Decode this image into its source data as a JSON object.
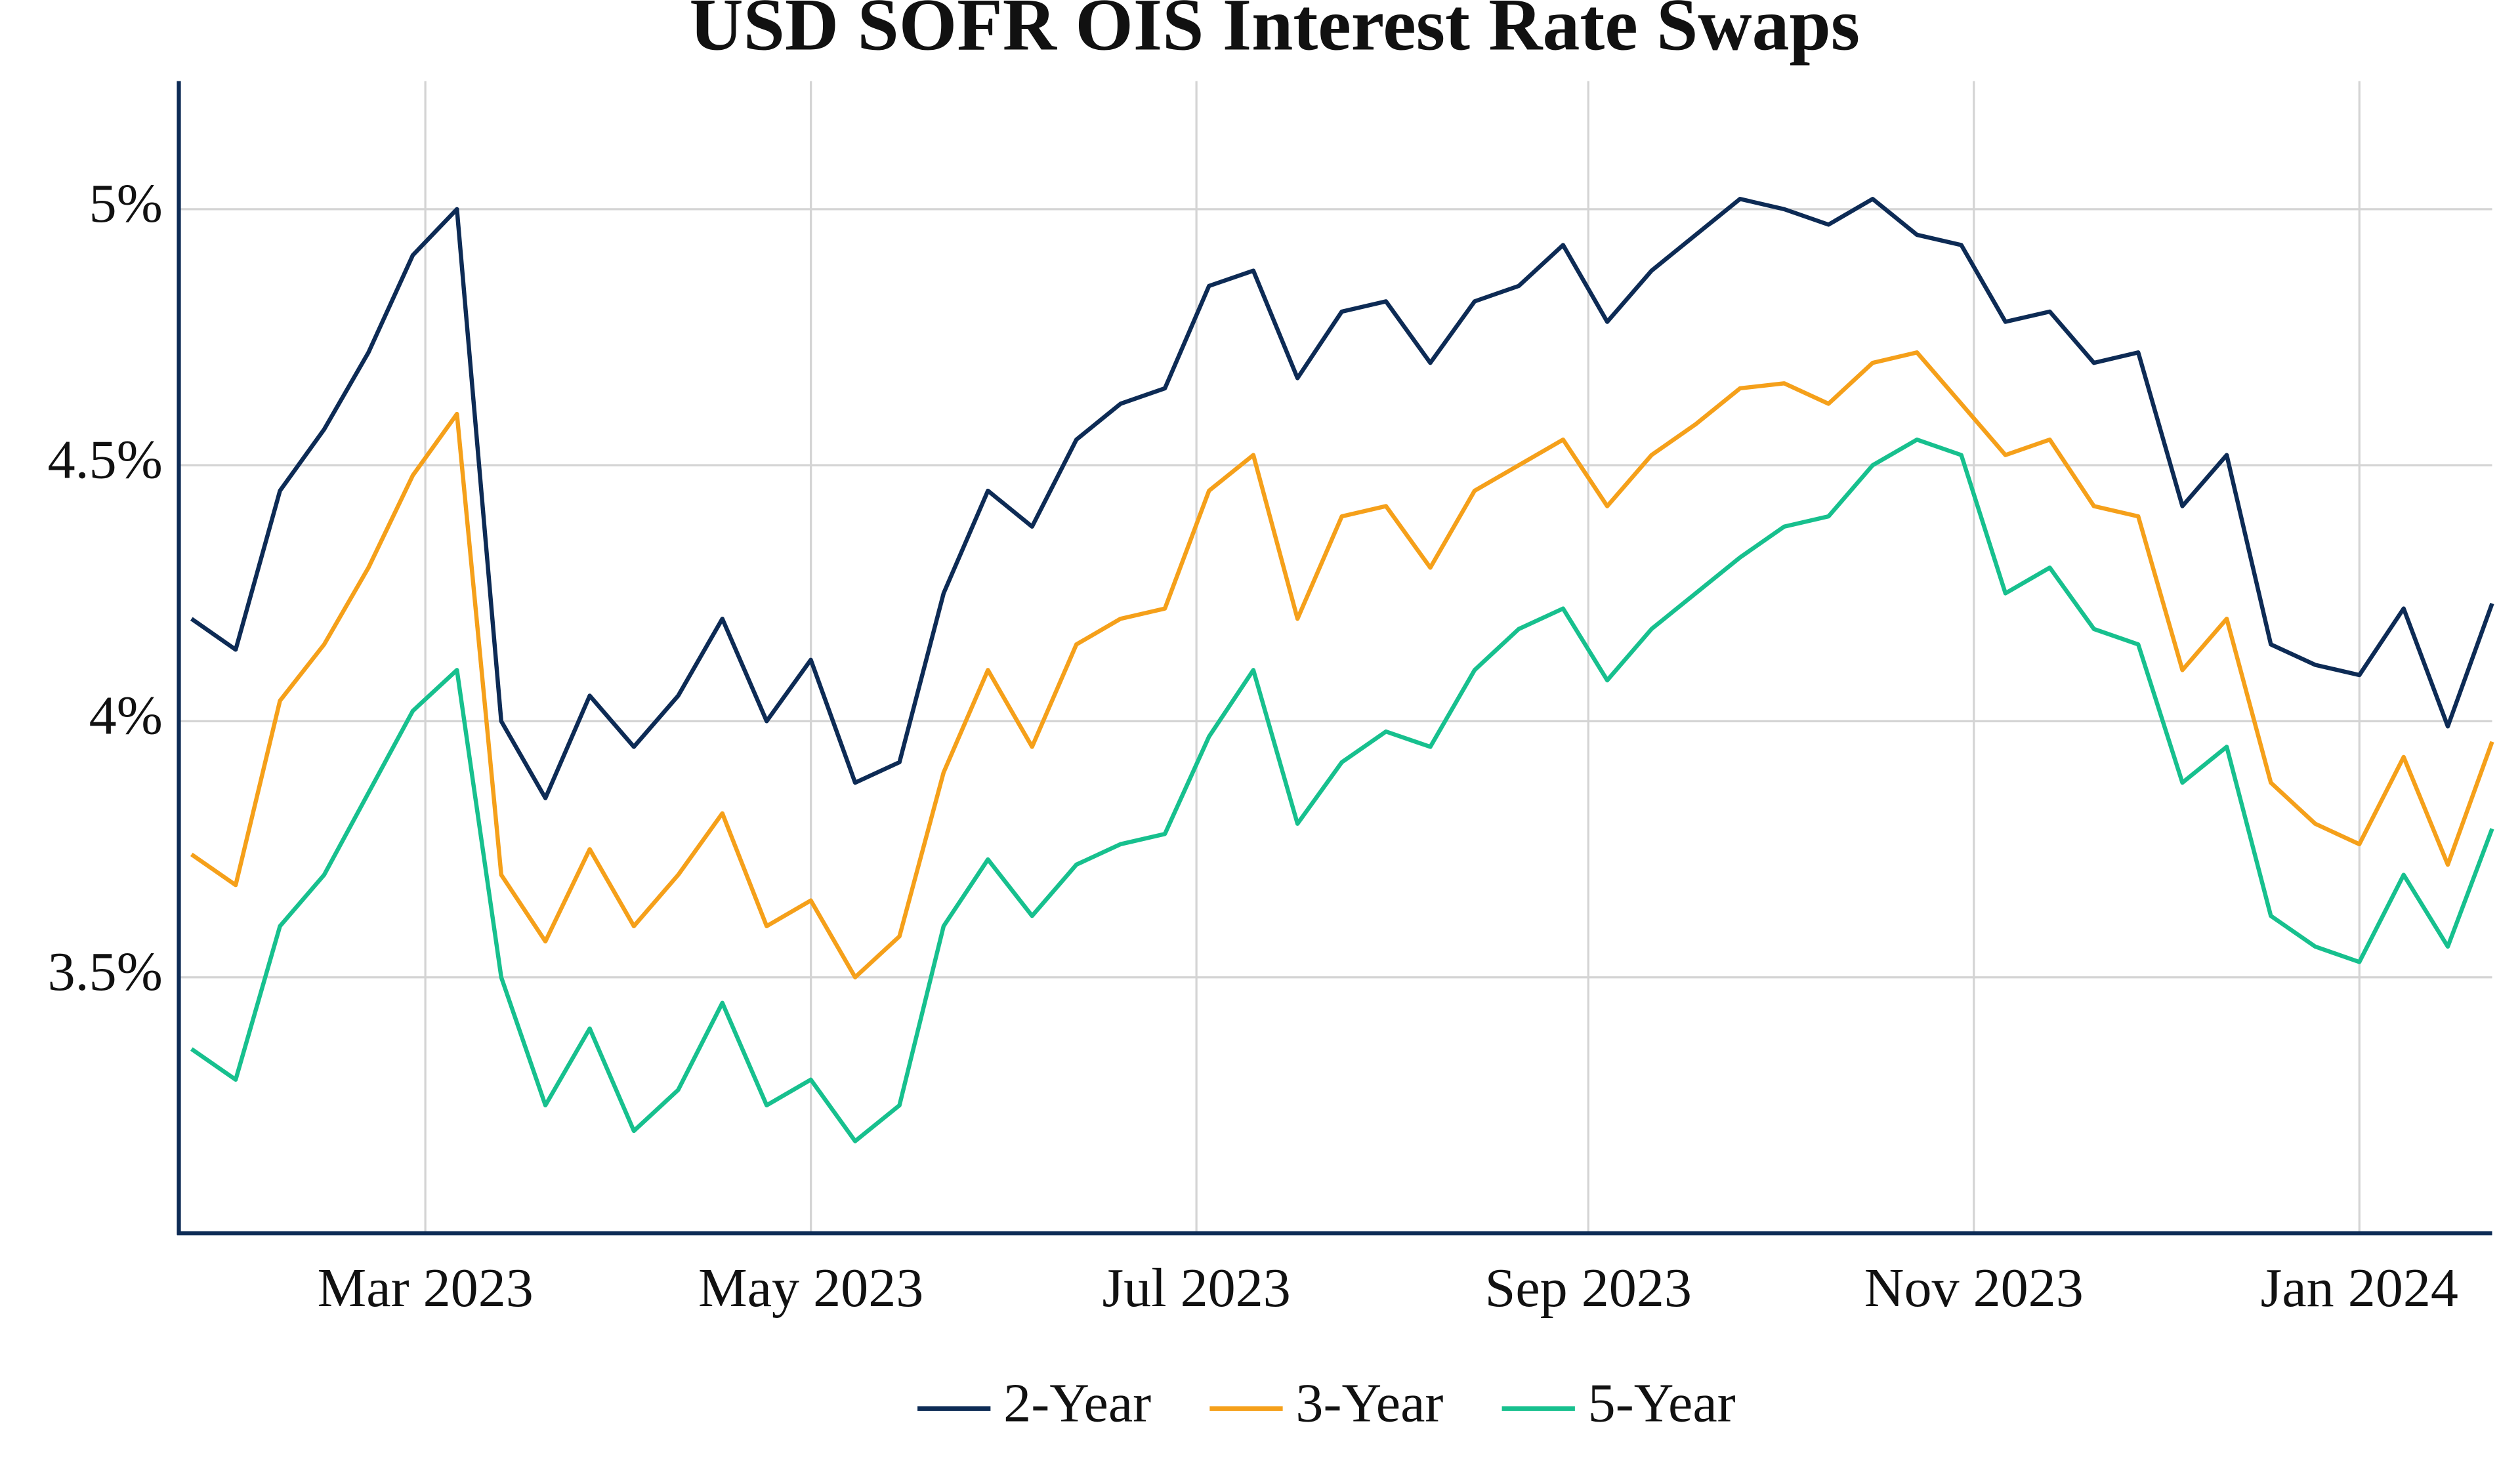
{
  "chart_data": {
    "type": "line",
    "title": "USD SOFR OIS Interest Rate Swaps",
    "x": [
      "2023-01-23",
      "2023-01-30",
      "2023-02-06",
      "2023-02-13",
      "2023-02-20",
      "2023-02-27",
      "2023-03-06",
      "2023-03-13",
      "2023-03-20",
      "2023-03-27",
      "2023-04-03",
      "2023-04-10",
      "2023-04-17",
      "2023-04-24",
      "2023-05-01",
      "2023-05-08",
      "2023-05-15",
      "2023-05-22",
      "2023-05-29",
      "2023-06-05",
      "2023-06-12",
      "2023-06-19",
      "2023-06-26",
      "2023-07-03",
      "2023-07-10",
      "2023-07-17",
      "2023-07-24",
      "2023-07-31",
      "2023-08-07",
      "2023-08-14",
      "2023-08-21",
      "2023-08-28",
      "2023-09-04",
      "2023-09-11",
      "2023-09-18",
      "2023-09-25",
      "2023-10-02",
      "2023-10-09",
      "2023-10-16",
      "2023-10-23",
      "2023-10-30",
      "2023-11-06",
      "2023-11-13",
      "2023-11-20",
      "2023-11-27",
      "2023-12-04",
      "2023-12-11",
      "2023-12-18",
      "2023-12-25",
      "2024-01-01",
      "2024-01-08",
      "2024-01-15",
      "2024-01-22"
    ],
    "series": [
      {
        "name": "2-Year",
        "color": "#0d2b55",
        "values": [
          4.2,
          4.14,
          4.45,
          4.57,
          4.72,
          4.91,
          5.0,
          4.0,
          3.85,
          4.05,
          3.95,
          4.05,
          4.2,
          4.0,
          4.12,
          3.88,
          3.92,
          4.25,
          4.45,
          4.38,
          4.55,
          4.62,
          4.65,
          4.85,
          4.88,
          4.67,
          4.8,
          4.82,
          4.7,
          4.82,
          4.85,
          4.93,
          4.78,
          4.88,
          4.95,
          5.02,
          5.0,
          4.97,
          5.02,
          4.95,
          4.93,
          4.78,
          4.8,
          4.7,
          4.72,
          4.42,
          4.52,
          4.15,
          4.11,
          4.09,
          4.22,
          3.99,
          4.23
        ]
      },
      {
        "name": "3-Year",
        "color": "#f5a01a",
        "values": [
          3.74,
          3.68,
          4.04,
          4.15,
          4.3,
          4.48,
          4.6,
          3.7,
          3.57,
          3.75,
          3.6,
          3.7,
          3.82,
          3.6,
          3.65,
          3.5,
          3.58,
          3.9,
          4.1,
          3.95,
          4.15,
          4.2,
          4.22,
          4.45,
          4.52,
          4.2,
          4.4,
          4.42,
          4.3,
          4.45,
          4.5,
          4.55,
          4.42,
          4.52,
          4.58,
          4.65,
          4.66,
          4.62,
          4.7,
          4.72,
          4.62,
          4.52,
          4.55,
          4.42,
          4.4,
          4.1,
          4.2,
          3.88,
          3.8,
          3.76,
          3.93,
          3.72,
          3.96
        ]
      },
      {
        "name": "5-Year",
        "color": "#17c08e",
        "values": [
          3.36,
          3.3,
          3.6,
          3.7,
          3.86,
          4.02,
          4.1,
          3.5,
          3.25,
          3.4,
          3.2,
          3.28,
          3.45,
          3.25,
          3.3,
          3.18,
          3.25,
          3.6,
          3.73,
          3.62,
          3.72,
          3.76,
          3.78,
          3.97,
          4.1,
          3.8,
          3.92,
          3.98,
          3.95,
          4.1,
          4.18,
          4.22,
          4.08,
          4.18,
          4.25,
          4.32,
          4.38,
          4.4,
          4.5,
          4.55,
          4.52,
          4.25,
          4.3,
          4.18,
          4.15,
          3.88,
          3.95,
          3.62,
          3.56,
          3.53,
          3.7,
          3.56,
          3.79
        ]
      }
    ],
    "xlim": [
      "2023-01-21",
      "2024-01-22"
    ],
    "xticks": [
      {
        "value": "2023-03-01",
        "label": "Mar 2023"
      },
      {
        "value": "2023-05-01",
        "label": "May 2023"
      },
      {
        "value": "2023-07-01",
        "label": "Jul 2023"
      },
      {
        "value": "2023-09-01",
        "label": "Sep 2023"
      },
      {
        "value": "2023-11-01",
        "label": "Nov 2023"
      },
      {
        "value": "2024-01-01",
        "label": "Jan 2024"
      }
    ],
    "ylim": [
      3.0,
      5.25
    ],
    "yticks": [
      {
        "value": 3.5,
        "label": "3.5%"
      },
      {
        "value": 4,
        "label": "4%"
      },
      {
        "value": 4.5,
        "label": "4.5%"
      },
      {
        "value": 5,
        "label": "5%"
      }
    ],
    "grid": true,
    "legend": "bottom"
  }
}
